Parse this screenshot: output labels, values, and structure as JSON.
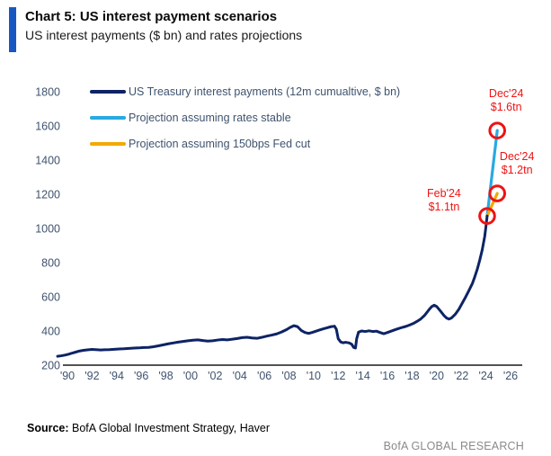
{
  "header": {
    "title": "Chart 5: US interest payment scenarios",
    "subtitle": "US interest payments ($ bn) and rates projections"
  },
  "footer": {
    "source_label": "Source:",
    "source_text": " BofA Global Investment Strategy, Haver",
    "brand": "BofA GLOBAL RESEARCH"
  },
  "theme": {
    "accent_bar": "#1757c2",
    "navy_line": "#0d2365",
    "stable_projection_blue": "#29a9e1",
    "fedcut_projection_orange": "#f2a900",
    "annotation_red": "#ee1313",
    "axis_text": "#3f536e",
    "axis_line": "#1a1a1a",
    "brand_gray": "#8a8a8a"
  },
  "chart_data": {
    "type": "line",
    "title": "Chart 5: US interest payment scenarios",
    "subtitle": "US interest payments ($ bn) and rates projections",
    "xlabel": "",
    "ylabel": "US interest payments ($ bn)",
    "xlim": [
      1989,
      2026.5
    ],
    "ylim": [
      200,
      1800
    ],
    "grid": false,
    "legend_position": "top-left",
    "y_ticks": [
      200,
      400,
      600,
      800,
      1000,
      1200,
      1400,
      1600,
      1800
    ],
    "x_ticks": [
      {
        "year": 1990,
        "label": "'90"
      },
      {
        "year": 1992,
        "label": "'92"
      },
      {
        "year": 1994,
        "label": "'94"
      },
      {
        "year": 1996,
        "label": "'96"
      },
      {
        "year": 1998,
        "label": "'98"
      },
      {
        "year": 2000,
        "label": "'00"
      },
      {
        "year": 2002,
        "label": "'02"
      },
      {
        "year": 2004,
        "label": "'04"
      },
      {
        "year": 2006,
        "label": "'06"
      },
      {
        "year": 2008,
        "label": "'08"
      },
      {
        "year": 2010,
        "label": "'10"
      },
      {
        "year": 2012,
        "label": "'12"
      },
      {
        "year": 2014,
        "label": "'14"
      },
      {
        "year": 2016,
        "label": "'16"
      },
      {
        "year": 2018,
        "label": "'18"
      },
      {
        "year": 2020,
        "label": "'20"
      },
      {
        "year": 2022,
        "label": "'22"
      },
      {
        "year": 2024,
        "label": "'24"
      },
      {
        "year": 2026,
        "label": "'26"
      }
    ],
    "series": [
      {
        "name": "US Treasury interest payments (12m cumualtive, $ bn)",
        "color": "#0d2365",
        "points": [
          [
            1989.2,
            252
          ],
          [
            1989.5,
            255
          ],
          [
            1989.8,
            259
          ],
          [
            1990.1,
            264
          ],
          [
            1990.4,
            271
          ],
          [
            1990.7,
            277
          ],
          [
            1991.0,
            283
          ],
          [
            1991.3,
            287
          ],
          [
            1991.7,
            290
          ],
          [
            1992.0,
            292
          ],
          [
            1992.3,
            291
          ],
          [
            1992.7,
            289
          ],
          [
            1993.0,
            290
          ],
          [
            1993.4,
            291
          ],
          [
            1993.8,
            293
          ],
          [
            1994.2,
            295
          ],
          [
            1994.6,
            296
          ],
          [
            1995.0,
            298
          ],
          [
            1995.4,
            300
          ],
          [
            1995.8,
            301
          ],
          [
            1996.2,
            303
          ],
          [
            1996.6,
            304
          ],
          [
            1997.0,
            308
          ],
          [
            1997.4,
            313
          ],
          [
            1997.8,
            319
          ],
          [
            1998.2,
            325
          ],
          [
            1998.6,
            330
          ],
          [
            1999.0,
            335
          ],
          [
            1999.4,
            339
          ],
          [
            1999.8,
            343
          ],
          [
            2000.2,
            346
          ],
          [
            2000.6,
            348
          ],
          [
            2001.0,
            344
          ],
          [
            2001.4,
            341
          ],
          [
            2001.8,
            343
          ],
          [
            2002.2,
            347
          ],
          [
            2002.6,
            350
          ],
          [
            2003.0,
            348
          ],
          [
            2003.4,
            352
          ],
          [
            2003.8,
            356
          ],
          [
            2004.2,
            361
          ],
          [
            2004.6,
            363
          ],
          [
            2005.0,
            359
          ],
          [
            2005.4,
            357
          ],
          [
            2005.8,
            363
          ],
          [
            2006.2,
            370
          ],
          [
            2006.6,
            376
          ],
          [
            2007.0,
            383
          ],
          [
            2007.4,
            394
          ],
          [
            2007.8,
            408
          ],
          [
            2008.1,
            421
          ],
          [
            2008.4,
            431
          ],
          [
            2008.7,
            425
          ],
          [
            2009.0,
            403
          ],
          [
            2009.3,
            391
          ],
          [
            2009.6,
            386
          ],
          [
            2009.9,
            392
          ],
          [
            2010.2,
            399
          ],
          [
            2010.5,
            406
          ],
          [
            2010.8,
            413
          ],
          [
            2011.1,
            419
          ],
          [
            2011.4,
            425
          ],
          [
            2011.7,
            428
          ],
          [
            2011.85,
            410
          ],
          [
            2012.0,
            355
          ],
          [
            2012.2,
            336
          ],
          [
            2012.4,
            331
          ],
          [
            2012.6,
            334
          ],
          [
            2012.9,
            330
          ],
          [
            2013.1,
            322
          ],
          [
            2013.25,
            304
          ],
          [
            2013.4,
            300
          ],
          [
            2013.5,
            355
          ],
          [
            2013.65,
            393
          ],
          [
            2013.9,
            400
          ],
          [
            2014.2,
            397
          ],
          [
            2014.5,
            401
          ],
          [
            2014.8,
            397
          ],
          [
            2015.1,
            399
          ],
          [
            2015.4,
            391
          ],
          [
            2015.7,
            384
          ],
          [
            2016.0,
            391
          ],
          [
            2016.3,
            399
          ],
          [
            2016.6,
            407
          ],
          [
            2016.9,
            414
          ],
          [
            2017.2,
            421
          ],
          [
            2017.5,
            427
          ],
          [
            2017.8,
            435
          ],
          [
            2018.1,
            444
          ],
          [
            2018.4,
            456
          ],
          [
            2018.7,
            470
          ],
          [
            2019.0,
            490
          ],
          [
            2019.2,
            508
          ],
          [
            2019.4,
            527
          ],
          [
            2019.6,
            543
          ],
          [
            2019.8,
            551
          ],
          [
            2020.0,
            543
          ],
          [
            2020.2,
            526
          ],
          [
            2020.4,
            508
          ],
          [
            2020.6,
            490
          ],
          [
            2020.8,
            476
          ],
          [
            2021.0,
            470
          ],
          [
            2021.2,
            476
          ],
          [
            2021.5,
            497
          ],
          [
            2021.8,
            527
          ],
          [
            2022.0,
            553
          ],
          [
            2022.3,
            592
          ],
          [
            2022.6,
            634
          ],
          [
            2022.9,
            678
          ],
          [
            2023.1,
            718
          ],
          [
            2023.3,
            762
          ],
          [
            2023.5,
            815
          ],
          [
            2023.7,
            875
          ],
          [
            2023.9,
            952
          ],
          [
            2024.0,
            1010
          ],
          [
            2024.1,
            1073
          ]
        ]
      },
      {
        "name": "Projection assuming rates stable",
        "color": "#29a9e1",
        "points": [
          [
            2024.1,
            1073
          ],
          [
            2024.92,
            1573
          ]
        ]
      },
      {
        "name": "Projection assuming 150bps Fed cut",
        "color": "#f2a900",
        "points": [
          [
            2024.1,
            1073
          ],
          [
            2024.92,
            1205
          ]
        ]
      }
    ],
    "annotations": [
      {
        "text_lines": [
          "Dec'24",
          "$1.6tn"
        ],
        "year": 2024.92,
        "value": 1573,
        "placement": "above",
        "color": "#ee1313"
      },
      {
        "text_lines": [
          "Dec'24",
          "$1.2tn"
        ],
        "year": 2024.92,
        "value": 1205,
        "placement": "right",
        "color": "#ee1313"
      },
      {
        "text_lines": [
          "Feb'24",
          "$1.1tn"
        ],
        "year": 2024.1,
        "value": 1073,
        "placement": "left",
        "color": "#ee1313"
      }
    ]
  }
}
